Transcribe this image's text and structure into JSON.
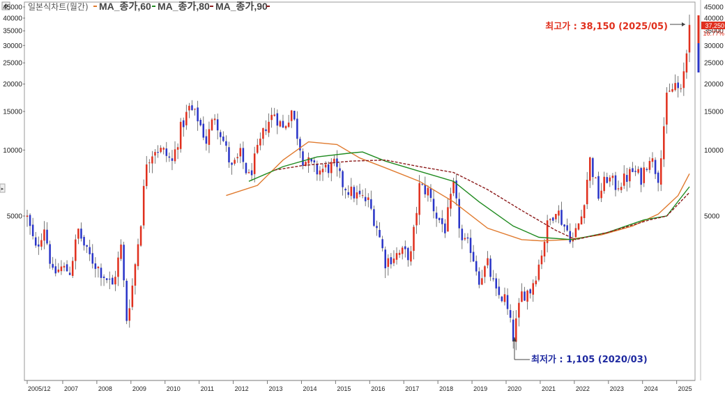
{
  "legend": {
    "title": "일본식차트(월간)",
    "ma": [
      "MA_종가,60",
      "MA_종가,80",
      "MA_종가,90"
    ],
    "ma_colors": [
      "#e07a2e",
      "#1f8a1f",
      "#8b1a1a"
    ]
  },
  "price_label": {
    "value": "37,250",
    "change": "16.77%"
  },
  "annotations": {
    "high": "최고가 : 38,150 (2025/05)",
    "low": "최저가 : 1,105 (2020/03)"
  },
  "chart_data": {
    "type": "candlestick",
    "scale": "log",
    "ylim": [
      1000,
      45000
    ],
    "y_ticks": [
      5000,
      10000,
      15000,
      20000,
      25000,
      30000,
      35000,
      40000,
      45000
    ],
    "x_ticks": [
      "2005/12",
      "2007",
      "2008",
      "2009",
      "2010",
      "2011",
      "2012",
      "2013",
      "2014",
      "2015",
      "2016",
      "2017",
      "2018",
      "2019",
      "2020",
      "2021",
      "2022",
      "2023",
      "2024",
      "2025"
    ],
    "up_color": "#e0301e",
    "down_color": "#2a35c8",
    "close_anchors": [
      [
        "2005-12",
        4900
      ],
      [
        "2006-03",
        3500
      ],
      [
        "2006-06",
        4500
      ],
      [
        "2006-09",
        2700
      ],
      [
        "2006-12",
        2900
      ],
      [
        "2007-03",
        2800
      ],
      [
        "2007-06",
        4300
      ],
      [
        "2007-09",
        3400
      ],
      [
        "2008-01",
        2900
      ],
      [
        "2008-06",
        2400
      ],
      [
        "2008-09",
        3600
      ],
      [
        "2008-11",
        1700
      ],
      [
        "2009-01",
        2400
      ],
      [
        "2009-04",
        4800
      ],
      [
        "2009-06",
        9000
      ],
      [
        "2009-09",
        10200
      ],
      [
        "2009-12",
        9800
      ],
      [
        "2010-03",
        8800
      ],
      [
        "2010-06",
        12500
      ],
      [
        "2010-09",
        15500
      ],
      [
        "2010-12",
        14000
      ],
      [
        "2011-03",
        11000
      ],
      [
        "2011-06",
        14500
      ],
      [
        "2011-09",
        11000
      ],
      [
        "2011-12",
        8200
      ],
      [
        "2012-03",
        9500
      ],
      [
        "2012-06",
        7500
      ],
      [
        "2012-09",
        9800
      ],
      [
        "2012-12",
        13000
      ],
      [
        "2013-03",
        14800
      ],
      [
        "2013-06",
        12500
      ],
      [
        "2013-09",
        15200
      ],
      [
        "2014-01",
        9200
      ],
      [
        "2014-06",
        8000
      ],
      [
        "2014-12",
        8500
      ],
      [
        "2015-03",
        7000
      ],
      [
        "2015-06",
        6400
      ],
      [
        "2015-12",
        5800
      ],
      [
        "2016-03",
        4500
      ],
      [
        "2016-06",
        3100
      ],
      [
        "2016-09",
        3300
      ],
      [
        "2016-12",
        3400
      ],
      [
        "2017-03",
        3300
      ],
      [
        "2017-06",
        6800
      ],
      [
        "2017-09",
        6500
      ],
      [
        "2017-12",
        5000
      ],
      [
        "2018-03",
        4400
      ],
      [
        "2018-06",
        6800
      ],
      [
        "2018-09",
        3800
      ],
      [
        "2018-12",
        3600
      ],
      [
        "2019-03",
        2600
      ],
      [
        "2019-06",
        3000
      ],
      [
        "2019-09",
        2200
      ],
      [
        "2019-12",
        2100
      ],
      [
        "2020-03",
        1400
      ],
      [
        "2020-06",
        2200
      ],
      [
        "2020-09",
        2300
      ],
      [
        "2020-12",
        3000
      ],
      [
        "2021-03",
        4500
      ],
      [
        "2021-06",
        5500
      ],
      [
        "2021-09",
        4500
      ],
      [
        "2021-12",
        3900
      ],
      [
        "2022-03",
        5000
      ],
      [
        "2022-06",
        9000
      ],
      [
        "2022-09",
        6200
      ],
      [
        "2022-12",
        7500
      ],
      [
        "2023-03",
        6900
      ],
      [
        "2023-06",
        7300
      ],
      [
        "2023-09",
        8000
      ],
      [
        "2023-12",
        7500
      ],
      [
        "2024-03",
        9500
      ],
      [
        "2024-06",
        7600
      ],
      [
        "2024-09",
        17000
      ],
      [
        "2024-12",
        20000
      ],
      [
        "2025-02",
        18000
      ],
      [
        "2025-04",
        28000
      ],
      [
        "2025-05",
        37250
      ]
    ],
    "ma_series": [
      {
        "name": "MA_종가,60",
        "color": "#e07a2e",
        "points": [
          [
            "2011-10",
            6200
          ],
          [
            "2012-09",
            6900
          ],
          [
            "2013-06",
            9000
          ],
          [
            "2014-03",
            10900
          ],
          [
            "2015-01",
            10600
          ],
          [
            "2015-09",
            9200
          ],
          [
            "2016-06",
            8300
          ],
          [
            "2017-06",
            7200
          ],
          [
            "2018-06",
            5800
          ],
          [
            "2019-06",
            4400
          ],
          [
            "2020-06",
            3900
          ],
          [
            "2021-01",
            3850
          ],
          [
            "2021-10",
            3900
          ],
          [
            "2022-10",
            4100
          ],
          [
            "2023-09",
            4500
          ],
          [
            "2024-06",
            5100
          ],
          [
            "2025-01",
            6200
          ],
          [
            "2025-05",
            7800
          ]
        ]
      },
      {
        "name": "MA_종가,80",
        "color": "#1f8a1f",
        "points": [
          [
            "2012-06",
            7200
          ],
          [
            "2013-06",
            8400
          ],
          [
            "2014-06",
            9300
          ],
          [
            "2015-06",
            9700
          ],
          [
            "2015-10",
            9800
          ],
          [
            "2016-06",
            8900
          ],
          [
            "2017-06",
            8000
          ],
          [
            "2018-06",
            7200
          ],
          [
            "2019-03",
            5800
          ],
          [
            "2020-03",
            4500
          ],
          [
            "2020-12",
            4000
          ],
          [
            "2021-12",
            3900
          ],
          [
            "2022-12",
            4200
          ],
          [
            "2024-01",
            4800
          ],
          [
            "2024-09",
            5000
          ],
          [
            "2025-05",
            6800
          ]
        ]
      },
      {
        "name": "MA_종가,90",
        "color": "#8b1a1a",
        "dash": true,
        "points": [
          [
            "2013-03",
            8100
          ],
          [
            "2014-01",
            8500
          ],
          [
            "2015-06",
            8900
          ],
          [
            "2016-06",
            9000
          ],
          [
            "2017-06",
            8400
          ],
          [
            "2018-06",
            7900
          ],
          [
            "2019-06",
            6600
          ],
          [
            "2020-06",
            5300
          ],
          [
            "2021-06",
            4300
          ],
          [
            "2022-01",
            3900
          ],
          [
            "2022-12",
            4200
          ],
          [
            "2024-03",
            4800
          ],
          [
            "2024-09",
            5000
          ],
          [
            "2025-05",
            6400
          ]
        ]
      }
    ]
  }
}
